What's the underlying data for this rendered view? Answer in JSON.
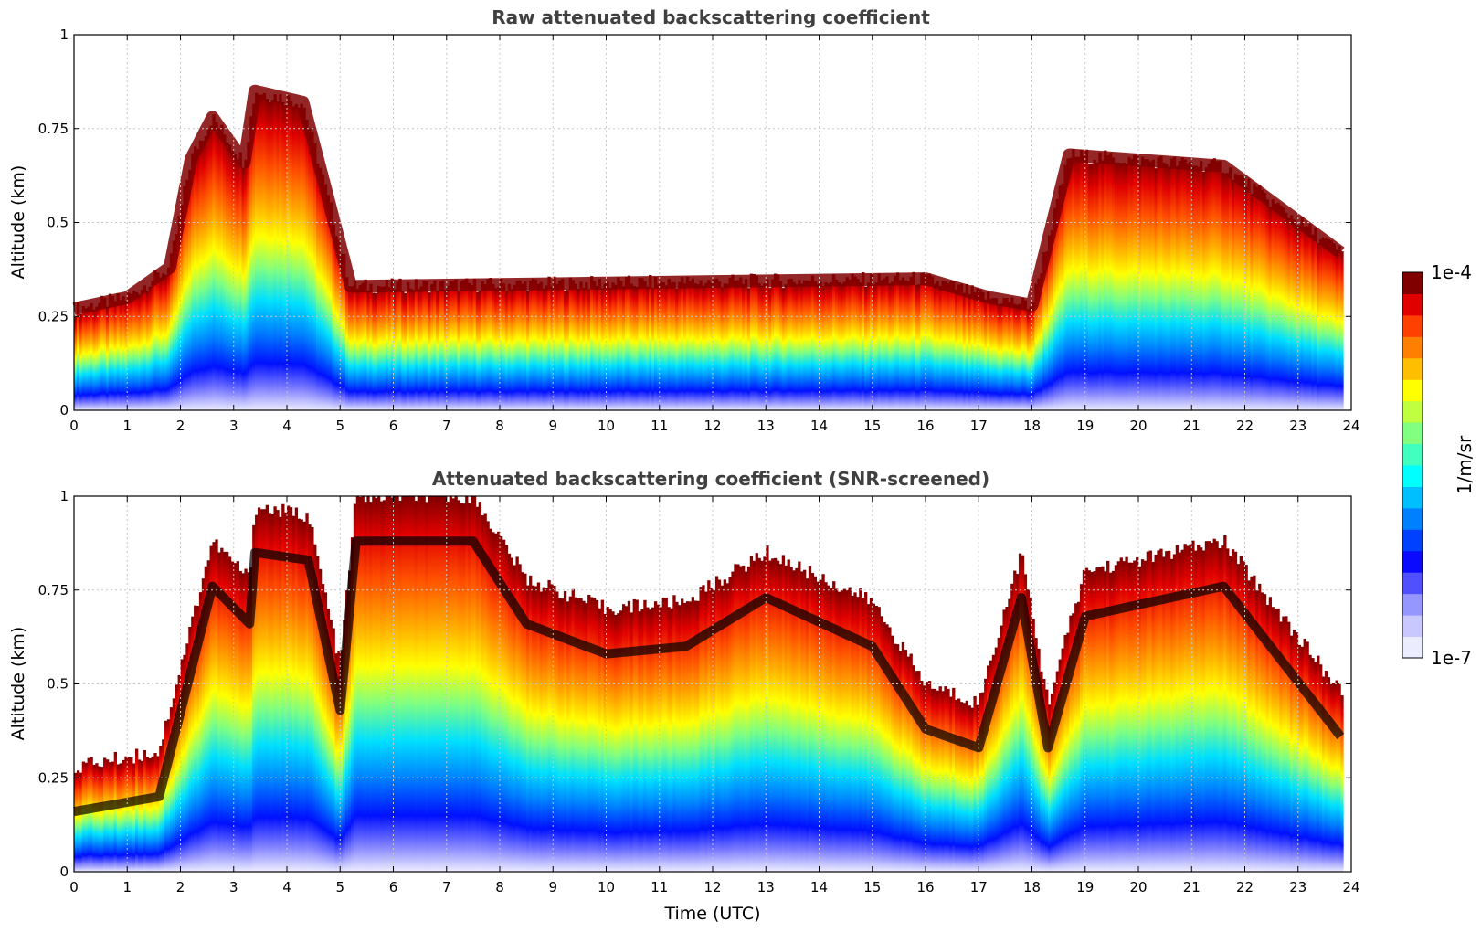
{
  "chart_data": [
    {
      "type": "heatmap",
      "title": "Raw attenuated backscattering coefficient",
      "xlabel": "",
      "ylabel": "Altitude (km)",
      "xlim": [
        0,
        24
      ],
      "ylim": [
        0,
        1
      ],
      "x_ticks": [
        "0",
        "1",
        "2",
        "3",
        "4",
        "5",
        "6",
        "7",
        "8",
        "9",
        "10",
        "11",
        "12",
        "13",
        "14",
        "15",
        "16",
        "17",
        "18",
        "19",
        "20",
        "21",
        "22",
        "23",
        "24"
      ],
      "y_ticks": [
        "0",
        "0.25",
        "0.5",
        "0.75",
        "1"
      ],
      "grid": true,
      "screened": false,
      "time_extent_hours": [
        0,
        23.85
      ],
      "layer_top_km": [
        {
          "t": 0,
          "h": 0.27
        },
        {
          "t": 1,
          "h": 0.3
        },
        {
          "t": 1.8,
          "h": 0.38
        },
        {
          "t": 2.2,
          "h": 0.67
        },
        {
          "t": 2.6,
          "h": 0.78
        },
        {
          "t": 3.2,
          "h": 0.66
        },
        {
          "t": 3.4,
          "h": 0.85
        },
        {
          "t": 4.3,
          "h": 0.82
        },
        {
          "t": 4.8,
          "h": 0.55
        },
        {
          "t": 5.2,
          "h": 0.33
        },
        {
          "t": 16,
          "h": 0.35
        },
        {
          "t": 17.2,
          "h": 0.3
        },
        {
          "t": 18,
          "h": 0.28
        },
        {
          "t": 18.7,
          "h": 0.68
        },
        {
          "t": 21.6,
          "h": 0.65
        },
        {
          "t": 23.8,
          "h": 0.42
        }
      ]
    },
    {
      "type": "heatmap",
      "title": "Attenuated backscattering coefficient (SNR-screened)",
      "xlabel": "Time (UTC)",
      "ylabel": "Altitude (km)",
      "xlim": [
        0,
        24
      ],
      "ylim": [
        0,
        1
      ],
      "x_ticks": [
        "0",
        "1",
        "2",
        "3",
        "4",
        "5",
        "6",
        "7",
        "8",
        "9",
        "10",
        "11",
        "12",
        "13",
        "14",
        "15",
        "16",
        "17",
        "18",
        "19",
        "20",
        "21",
        "22",
        "23",
        "24"
      ],
      "y_ticks": [
        "0",
        "0.25",
        "0.5",
        "0.75",
        "1"
      ],
      "grid": true,
      "screened": true,
      "time_extent_hours": [
        0,
        23.85
      ],
      "signal_top_km": [
        {
          "t": 0,
          "h": 0.28
        },
        {
          "t": 1.6,
          "h": 0.32
        },
        {
          "t": 2.6,
          "h": 0.88
        },
        {
          "t": 3.3,
          "h": 0.78
        },
        {
          "t": 3.4,
          "h": 0.97
        },
        {
          "t": 4.4,
          "h": 0.95
        },
        {
          "t": 5.0,
          "h": 0.55
        },
        {
          "t": 5.3,
          "h": 1.0
        },
        {
          "t": 7.5,
          "h": 1.0
        },
        {
          "t": 8.5,
          "h": 0.78
        },
        {
          "t": 10,
          "h": 0.7
        },
        {
          "t": 11.5,
          "h": 0.72
        },
        {
          "t": 13,
          "h": 0.85
        },
        {
          "t": 15,
          "h": 0.72
        },
        {
          "t": 16,
          "h": 0.5
        },
        {
          "t": 17,
          "h": 0.45
        },
        {
          "t": 17.8,
          "h": 0.85
        },
        {
          "t": 18.3,
          "h": 0.45
        },
        {
          "t": 19,
          "h": 0.8
        },
        {
          "t": 21.6,
          "h": 0.88
        },
        {
          "t": 23.8,
          "h": 0.48
        }
      ]
    }
  ],
  "colorbar": {
    "label": "1/m/sr",
    "max_label": "1e-4",
    "min_label": "1e-7",
    "colors": [
      "#ececff",
      "#c8c8ff",
      "#9696ff",
      "#5050ff",
      "#0a0aff",
      "#0040ff",
      "#007fff",
      "#00bfff",
      "#00ffff",
      "#40ffbf",
      "#80ff80",
      "#bfff40",
      "#ffff00",
      "#ffbf00",
      "#ff8000",
      "#ff4000",
      "#e00000",
      "#800000"
    ]
  }
}
